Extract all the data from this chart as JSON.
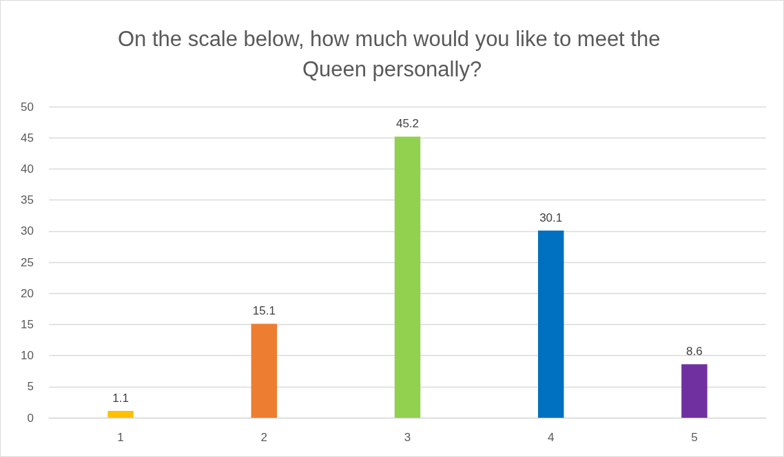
{
  "chart_data": {
    "type": "bar",
    "title": "On the scale below, how much would you like to meet the Queen personally?",
    "categories": [
      "1",
      "2",
      "3",
      "4",
      "5"
    ],
    "values": [
      1.1,
      15.1,
      45.2,
      30.1,
      8.6
    ],
    "colors": [
      "#ffc000",
      "#ed7d31",
      "#92d050",
      "#0070c0",
      "#7030a0"
    ],
    "ylim": [
      0,
      50
    ],
    "yticks": [
      0,
      5,
      10,
      15,
      20,
      25,
      30,
      35,
      40,
      45,
      50
    ],
    "grid": "y",
    "data_labels": true
  }
}
